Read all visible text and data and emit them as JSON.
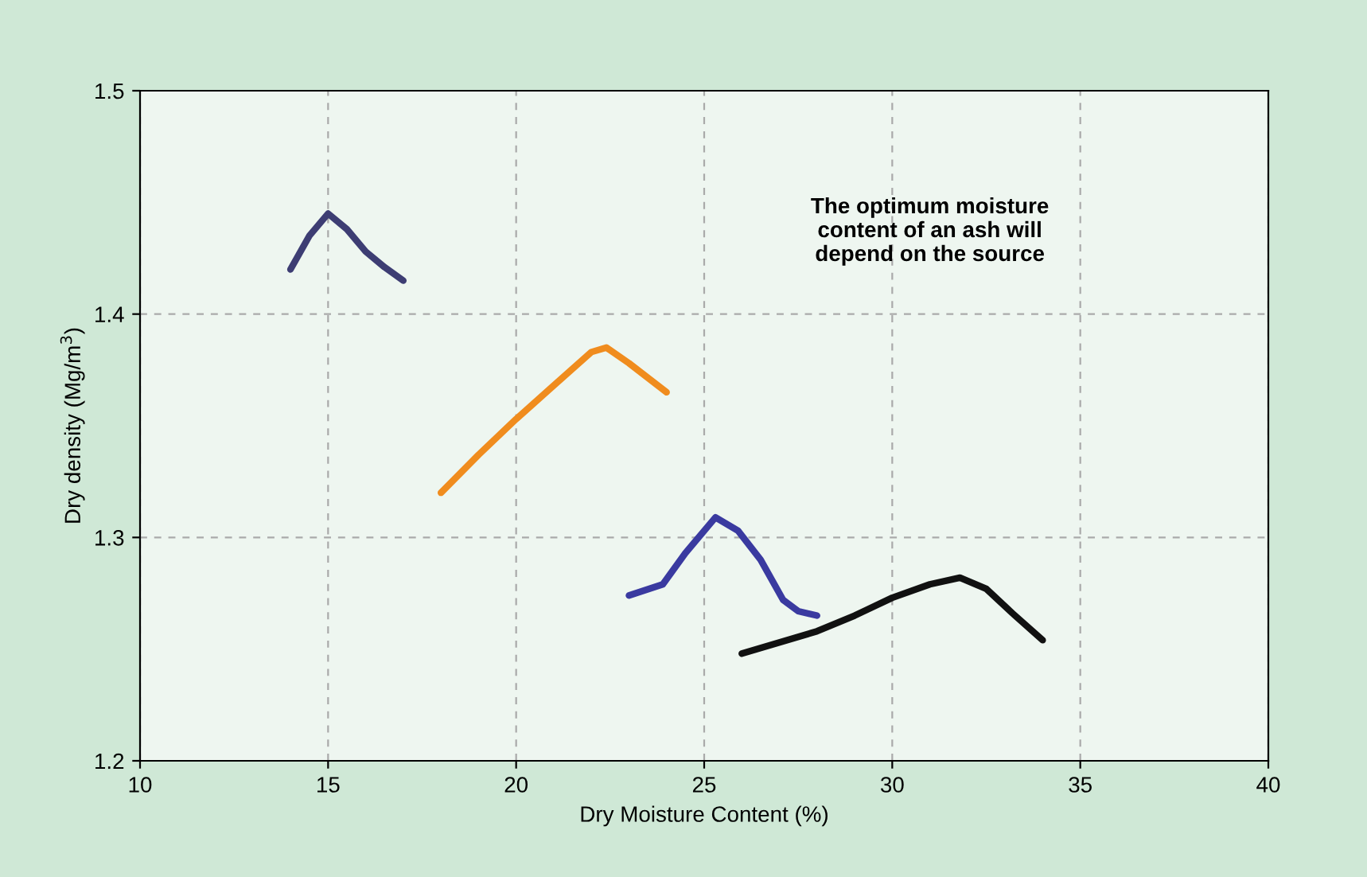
{
  "chart_data": {
    "type": "line",
    "xlabel": "Dry Moisture Content (%)",
    "ylabel": "Dry density (Mg/m$^{3}$)",
    "annotations": [
      "The optimum moisture\ncontent of an ash will\ndepend on the source"
    ],
    "series": [
      {
        "color": "#3d3d73",
        "x": [
          14,
          14.5,
          15,
          15.5,
          16,
          16.5,
          17
        ],
        "values": [
          1.42,
          1.435,
          1.445,
          1.438,
          1.428,
          1.421,
          1.415
        ]
      },
      {
        "color": "#f08c1e",
        "x": [
          18,
          19,
          20,
          21,
          22,
          22.4,
          23,
          24
        ],
        "values": [
          1.32,
          1.337,
          1.353,
          1.368,
          1.383,
          1.385,
          1.378,
          1.365
        ]
      },
      {
        "color": "#3a3aa0",
        "x": [
          23,
          23.9,
          24.5,
          25.3,
          25.9,
          26.5,
          27.1,
          27.5,
          28
        ],
        "values": [
          1.274,
          1.279,
          1.293,
          1.309,
          1.303,
          1.29,
          1.272,
          1.267,
          1.265
        ]
      },
      {
        "color": "#111111",
        "x": [
          26,
          28,
          29,
          30,
          31,
          31.8,
          32.5,
          33.2,
          34
        ],
        "values": [
          1.248,
          1.258,
          1.265,
          1.273,
          1.279,
          1.282,
          1.277,
          1.266,
          1.254
        ]
      }
    ],
    "xlim": [
      10,
      40
    ],
    "xticks": [
      10,
      15,
      20,
      25,
      30,
      35,
      40
    ],
    "ylim": [
      1.2,
      1.5
    ],
    "yticks": [
      1.2,
      1.3,
      1.4,
      1.5
    ],
    "grid": true,
    "marker": "none",
    "line_style": "solid"
  }
}
